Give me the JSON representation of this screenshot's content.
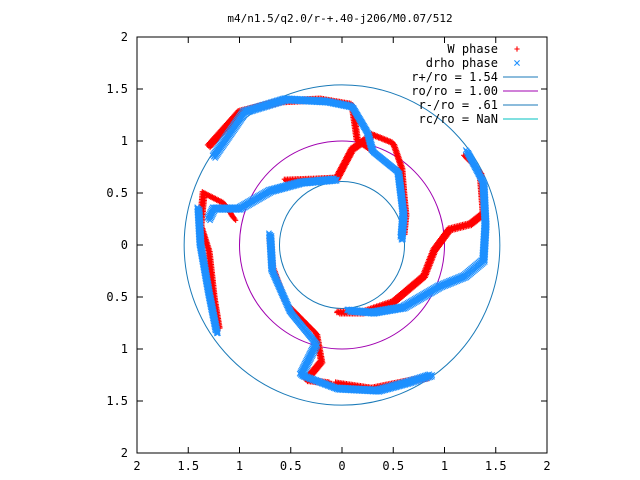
{
  "chart_data": {
    "type": "scatter",
    "title": "m4/n1.5/q2.0/r-+.40-j206/M0.07/512",
    "xlabel": "",
    "ylabel": "",
    "xlim": [
      -2,
      2
    ],
    "ylim": [
      -2,
      2
    ],
    "grid": false,
    "legend_position": "top-right",
    "x_ticks": [
      "2",
      "1.5",
      "1",
      "0.5",
      "0",
      "0.5",
      "1",
      "1.5",
      "2"
    ],
    "y_ticks": [
      "2",
      "1.5",
      "1",
      "0.5",
      "0",
      "0.5",
      "1",
      "1.5",
      "2"
    ],
    "tick_values": [
      -2,
      -1.5,
      -1,
      -0.5,
      0,
      0.5,
      1,
      1.5,
      2
    ],
    "series": [
      {
        "name": "W phase",
        "marker": "plus",
        "color": "#ff0000",
        "arms": [
          [
            [
              -0.55,
              0.62
            ],
            [
              -0.25,
              0.63
            ],
            [
              -0.05,
              0.64
            ],
            [
              0.1,
              0.92
            ],
            [
              0.3,
              1.06
            ],
            [
              0.5,
              0.98
            ],
            [
              0.58,
              0.75
            ],
            [
              0.6,
              0.5
            ],
            [
              0.62,
              0.3
            ],
            [
              0.6,
              0.1
            ]
          ],
          [
            [
              -1.3,
              0.95
            ],
            [
              -1.0,
              1.28
            ],
            [
              -0.6,
              1.38
            ],
            [
              -0.2,
              1.4
            ],
            [
              0.1,
              1.35
            ],
            [
              0.15,
              1.0
            ],
            [
              0.3,
              0.9
            ]
          ],
          [
            [
              1.2,
              0.85
            ],
            [
              1.35,
              0.7
            ],
            [
              1.38,
              0.3
            ],
            [
              1.25,
              0.2
            ],
            [
              1.05,
              0.15
            ],
            [
              0.9,
              -0.05
            ],
            [
              0.8,
              -0.3
            ],
            [
              0.5,
              -0.55
            ],
            [
              0.2,
              -0.65
            ],
            [
              -0.05,
              -0.65
            ]
          ],
          [
            [
              -0.05,
              -1.33
            ],
            [
              0.3,
              -1.38
            ],
            [
              0.6,
              -1.32
            ],
            [
              0.85,
              -1.27
            ]
          ],
          [
            [
              -1.05,
              0.25
            ],
            [
              -1.15,
              0.4
            ],
            [
              -1.35,
              0.5
            ],
            [
              -1.38,
              0.2
            ],
            [
              -1.3,
              -0.05
            ],
            [
              -1.25,
              -0.5
            ],
            [
              -1.2,
              -0.8
            ]
          ],
          [
            [
              -0.7,
              0.05
            ],
            [
              -0.68,
              -0.2
            ],
            [
              -0.55,
              -0.55
            ],
            [
              -0.25,
              -0.85
            ],
            [
              -0.2,
              -1.12
            ],
            [
              -0.35,
              -1.3
            ],
            [
              -0.1,
              -1.33
            ]
          ]
        ]
      },
      {
        "name": "drho phase",
        "marker": "cross",
        "color": "#1e90ff",
        "arms": [
          [
            [
              -1.25,
              0.85
            ],
            [
              -0.95,
              1.28
            ],
            [
              -0.55,
              1.4
            ],
            [
              -0.15,
              1.38
            ],
            [
              0.1,
              1.33
            ],
            [
              0.25,
              1.08
            ],
            [
              0.3,
              0.9
            ],
            [
              0.55,
              0.7
            ],
            [
              0.6,
              0.3
            ],
            [
              0.58,
              0.05
            ]
          ],
          [
            [
              -1.3,
              0.25
            ],
            [
              -1.25,
              0.35
            ],
            [
              -1.0,
              0.35
            ],
            [
              -0.7,
              0.52
            ],
            [
              -0.4,
              0.6
            ],
            [
              -0.05,
              0.63
            ]
          ],
          [
            [
              1.22,
              0.9
            ],
            [
              1.38,
              0.6
            ],
            [
              1.4,
              0.2
            ],
            [
              1.38,
              -0.15
            ],
            [
              1.2,
              -0.3
            ],
            [
              0.95,
              -0.4
            ],
            [
              0.6,
              -0.6
            ],
            [
              0.3,
              -0.65
            ],
            [
              0.05,
              -0.63
            ]
          ],
          [
            [
              -1.4,
              0.35
            ],
            [
              -1.38,
              0.0
            ],
            [
              -1.3,
              -0.45
            ],
            [
              -1.22,
              -0.85
            ]
          ],
          [
            [
              -0.7,
              0.1
            ],
            [
              -0.68,
              -0.25
            ],
            [
              -0.5,
              -0.65
            ],
            [
              -0.25,
              -0.95
            ],
            [
              -0.4,
              -1.25
            ],
            [
              -0.05,
              -1.38
            ],
            [
              0.35,
              -1.4
            ],
            [
              0.65,
              -1.32
            ],
            [
              0.88,
              -1.25
            ]
          ]
        ]
      },
      {
        "name": "r+/ro = 1.54",
        "type": "circle",
        "radius": 1.54,
        "color": "#1a7ab8"
      },
      {
        "name": "ro/ro = 1.00",
        "type": "circle",
        "radius": 1.0,
        "color": "#a000b0"
      },
      {
        "name": "r-/ro = .61",
        "type": "circle",
        "radius": 0.61,
        "color": "#1a7ab8"
      },
      {
        "name": "rc/ro = NaN",
        "type": "circle",
        "radius": null,
        "color": "#00c0c0"
      }
    ]
  }
}
